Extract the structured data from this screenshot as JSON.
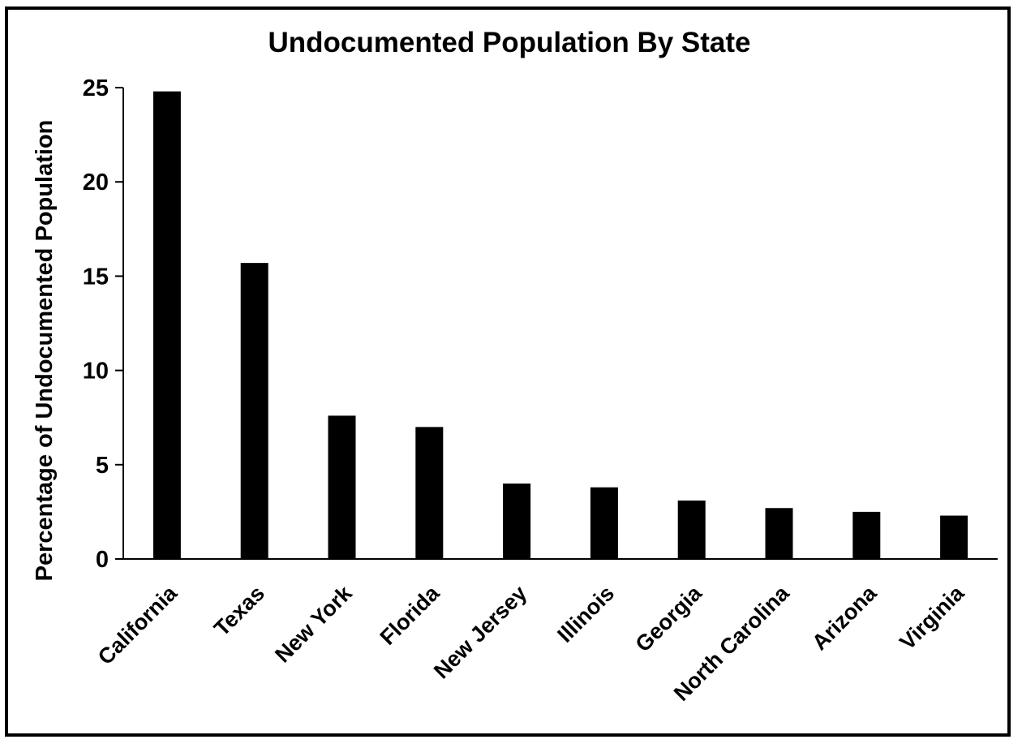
{
  "chart_data": {
    "type": "bar",
    "title": "Undocumented Population By State",
    "xlabel": "",
    "ylabel": "Percentage of Undocumented Population",
    "categories": [
      "California",
      "Texas",
      "New York",
      "Florida",
      "New Jersey",
      "Illinois",
      "Georgia",
      "North Carolina",
      "Arizona",
      "Virginia"
    ],
    "values": [
      24.8,
      15.7,
      7.6,
      7.0,
      4.0,
      3.8,
      3.1,
      2.7,
      2.5,
      2.3
    ],
    "ylim": [
      0,
      25
    ],
    "yticks": [
      0,
      5,
      10,
      15,
      20,
      25
    ],
    "grid": false,
    "legend": "none",
    "bar_color": "#000000"
  }
}
